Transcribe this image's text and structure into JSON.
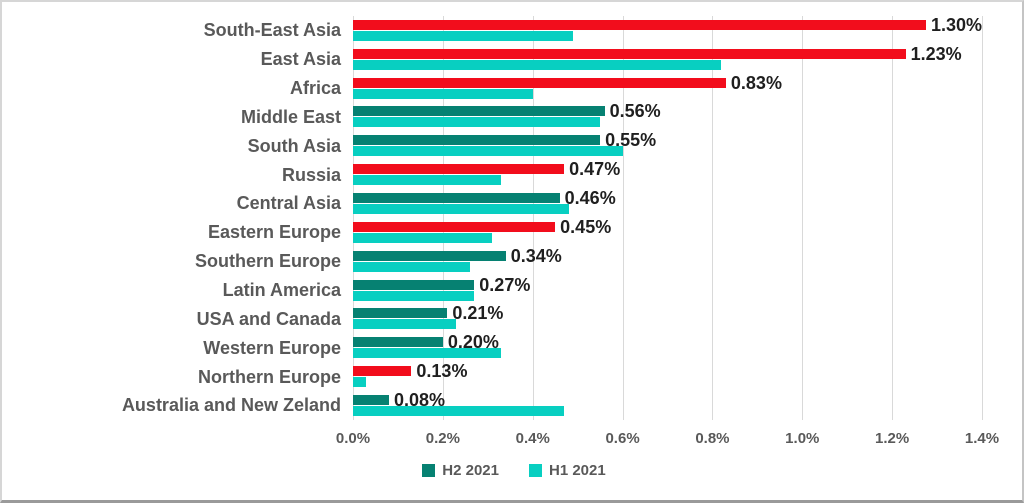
{
  "chart_data": {
    "type": "bar",
    "orientation": "horizontal",
    "title": "",
    "xlabel": "",
    "ylabel": "",
    "xlim": [
      0,
      1.4
    ],
    "grid": true,
    "x_ticks": [
      "0.0%",
      "0.2%",
      "0.4%",
      "0.6%",
      "0.8%",
      "1.0%",
      "1.2%",
      "1.4%"
    ],
    "x_tick_values": [
      0.0,
      0.2,
      0.4,
      0.6,
      0.8,
      1.0,
      1.2,
      1.4
    ],
    "categories": [
      "South-East Asia",
      "East Asia",
      "Africa",
      "Middle East",
      "South Asia",
      "Russia",
      "Central Asia",
      "Eastern Europe",
      "Southern Europe",
      "Latin America",
      "USA and Canada",
      "Western Europe",
      "Northern Europe",
      "Australia and New Zeland"
    ],
    "series": [
      {
        "name": "H2 2021",
        "values": [
          1.3,
          1.23,
          0.83,
          0.56,
          0.55,
          0.47,
          0.46,
          0.45,
          0.34,
          0.27,
          0.21,
          0.2,
          0.13,
          0.08
        ],
        "data_labels": [
          "1.30%",
          "1.23%",
          "0.83%",
          "0.56%",
          "0.55%",
          "0.47%",
          "0.46%",
          "0.45%",
          "0.34%",
          "0.27%",
          "0.21%",
          "0.20%",
          "0.13%",
          "0.08%"
        ],
        "bar_color_keys": [
          "red",
          "red",
          "red",
          "teal",
          "teal",
          "red",
          "teal",
          "red",
          "teal",
          "teal",
          "teal",
          "teal",
          "red",
          "teal"
        ]
      },
      {
        "name": "H1 2021",
        "values": [
          0.49,
          0.82,
          0.4,
          0.55,
          0.6,
          0.33,
          0.48,
          0.31,
          0.26,
          0.27,
          0.23,
          0.33,
          0.03,
          0.47
        ],
        "bar_color_keys": [
          "cyan",
          "cyan",
          "cyan",
          "cyan",
          "cyan",
          "cyan",
          "cyan",
          "cyan",
          "cyan",
          "cyan",
          "cyan",
          "cyan",
          "cyan",
          "cyan"
        ]
      }
    ],
    "legend": {
      "position": "bottom",
      "items": [
        {
          "label": "H2 2021",
          "color_key": "teal"
        },
        {
          "label": "H1 2021",
          "color_key": "cyan"
        }
      ]
    }
  },
  "colors": {
    "red": "#f20d1c",
    "teal": "#068172",
    "cyan": "#08cfc1",
    "gridline": "#d9d9d9",
    "axis_text": "#595959",
    "category_text": "#595959",
    "data_label_text": "#1f1f1f",
    "background": "#ffffff"
  }
}
